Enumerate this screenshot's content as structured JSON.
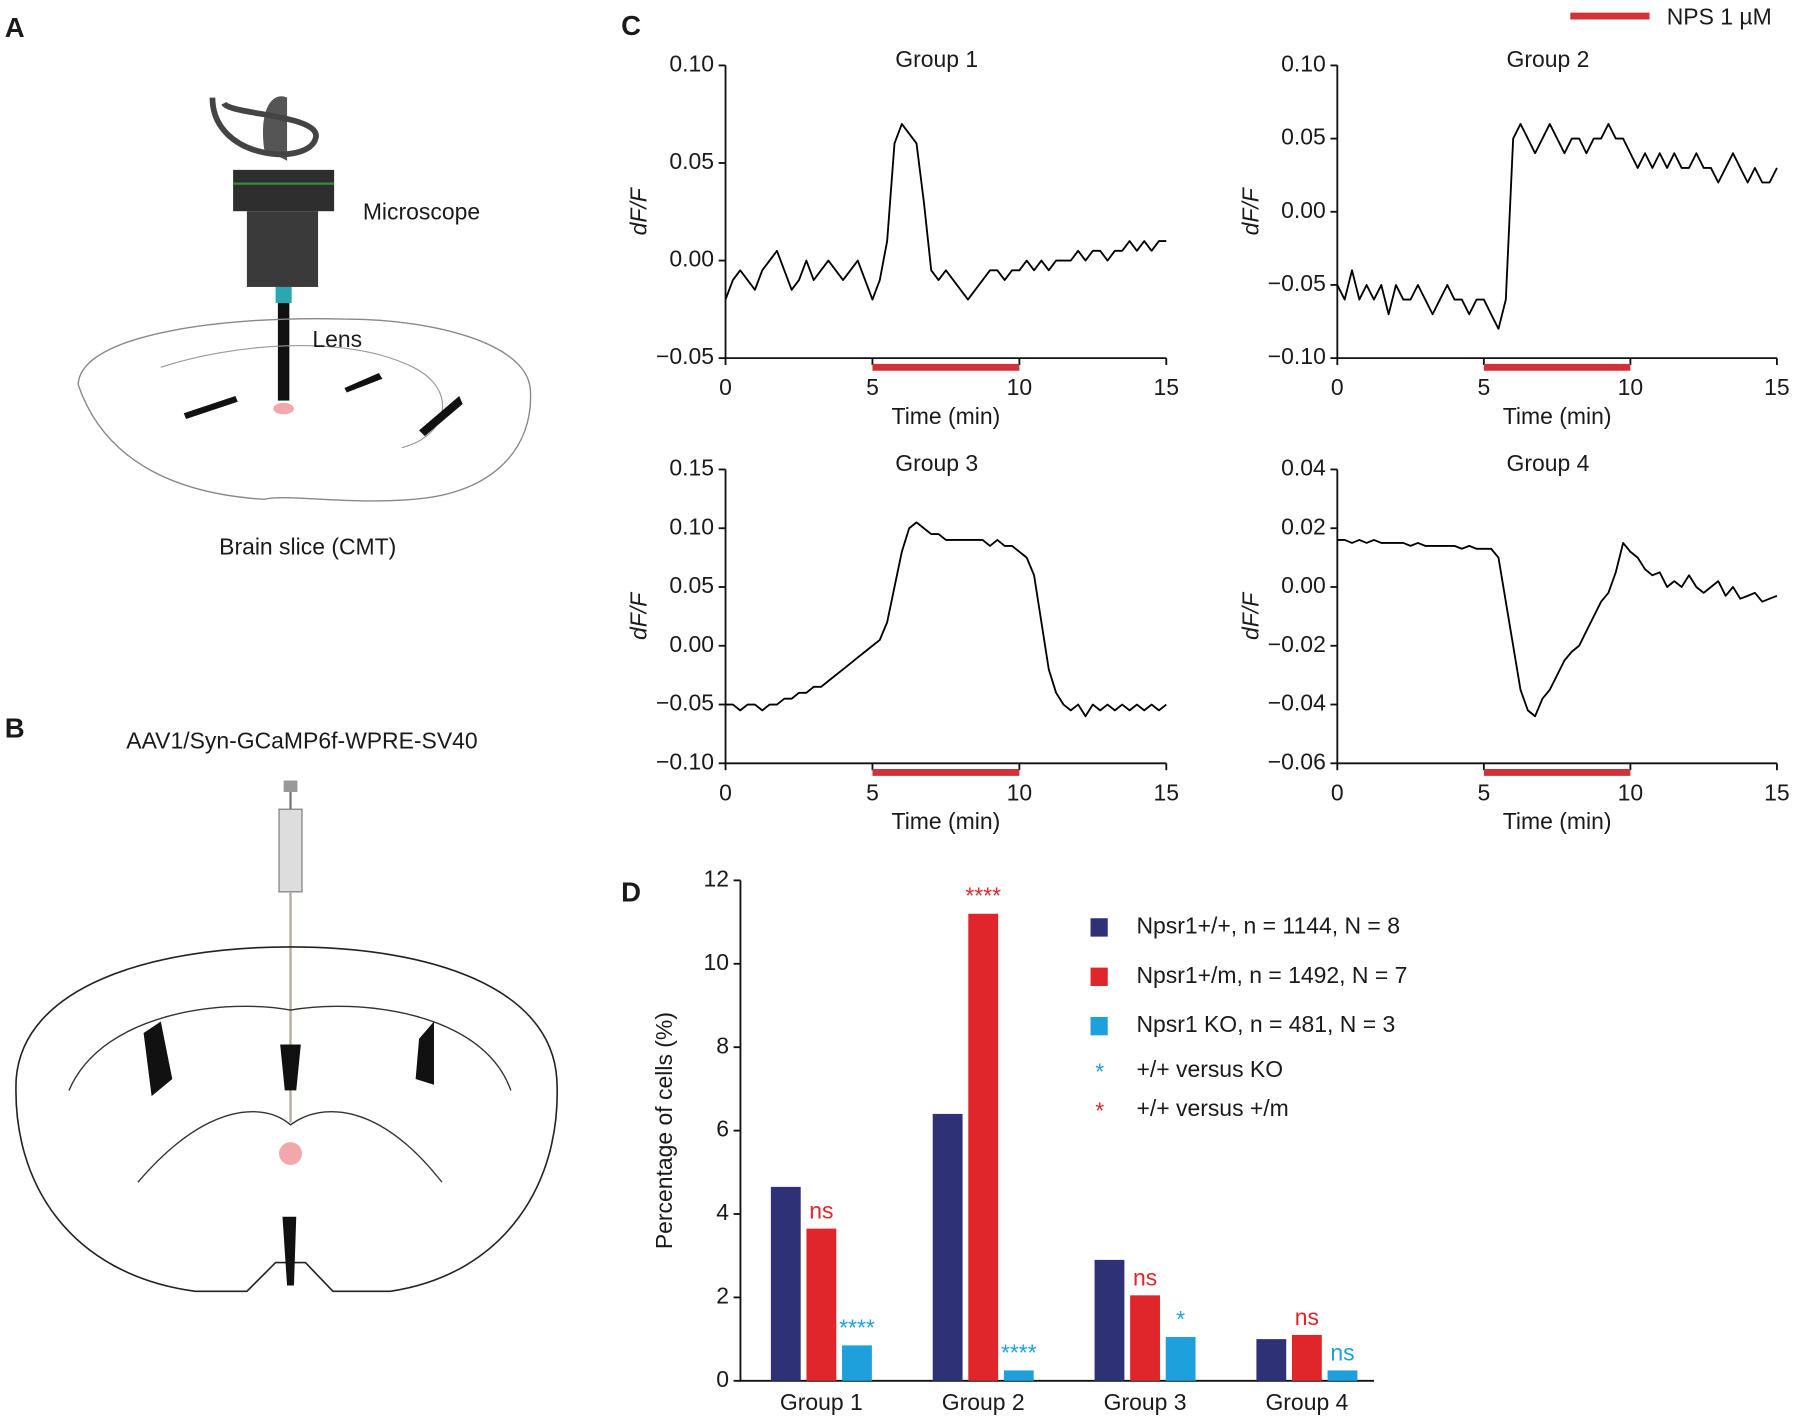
{
  "figure": {
    "panel_labels": [
      "A",
      "B",
      "C",
      "D"
    ],
    "microscope": "Microscope",
    "lens": "Lens",
    "slice": "Brain slice (CMT)",
    "virus": "AAV1/Syn-GCaMP6f-WPRE-SV40",
    "stimulus": {
      "label": "NPS 1 µM",
      "color": "#d3313a"
    }
  },
  "chart_data": [
    {
      "type": "line",
      "title": "Group 1",
      "xlabel": "Time (min)",
      "ylabel": "dF/F",
      "color": "#000000",
      "stimulus": [
        5,
        10
      ],
      "xlim": [
        0,
        15
      ],
      "xticks": [
        0,
        5,
        10,
        15
      ],
      "ylim": [
        -0.05,
        0.1
      ],
      "yticks": [
        {
          "value": -0.05,
          "label": "−0.05"
        },
        {
          "value": 0,
          "label": "0.00"
        },
        {
          "value": 0.05,
          "label": "0.05"
        },
        {
          "value": 0.1,
          "label": "0.10"
        }
      ],
      "x": [
        0,
        0.25,
        0.5,
        0.75,
        1,
        1.25,
        1.5,
        1.75,
        2,
        2.25,
        2.5,
        2.75,
        3,
        3.25,
        3.5,
        3.75,
        4,
        4.25,
        4.5,
        4.75,
        5,
        5.25,
        5.5,
        5.75,
        6,
        6.25,
        6.5,
        6.75,
        7,
        7.25,
        7.5,
        7.75,
        8,
        8.25,
        8.5,
        8.75,
        9,
        9.25,
        9.5,
        9.75,
        10,
        10.25,
        10.5,
        10.75,
        11,
        11.25,
        11.5,
        11.75,
        12,
        12.25,
        12.5,
        12.75,
        13,
        13.25,
        13.5,
        13.75,
        14,
        14.25,
        14.5,
        14.75,
        15
      ],
      "values": [
        -0.02,
        -0.01,
        -0.005,
        -0.01,
        -0.015,
        -0.005,
        0,
        0.005,
        -0.005,
        -0.015,
        -0.01,
        0,
        -0.01,
        -0.005,
        0,
        -0.005,
        -0.01,
        -0.005,
        0,
        -0.01,
        -0.02,
        -0.01,
        0.01,
        0.06,
        0.07,
        0.065,
        0.06,
        0.03,
        -0.005,
        -0.01,
        -0.005,
        -0.01,
        -0.015,
        -0.02,
        -0.015,
        -0.01,
        -0.005,
        -0.005,
        -0.01,
        -0.005,
        -0.005,
        0,
        -0.005,
        0,
        -0.005,
        0,
        0,
        0,
        0.005,
        0,
        0.005,
        0.005,
        0,
        0.005,
        0.005,
        0.01,
        0.005,
        0.01,
        0.005,
        0.01,
        0.01
      ]
    },
    {
      "type": "line",
      "title": "Group 2",
      "xlabel": "Time (min)",
      "ylabel": "dF/F",
      "color": "#000000",
      "stimulus": [
        5,
        10
      ],
      "xlim": [
        0,
        15
      ],
      "xticks": [
        0,
        5,
        10,
        15
      ],
      "ylim": [
        -0.1,
        0.1
      ],
      "yticks": [
        {
          "value": -0.1,
          "label": "−0.10"
        },
        {
          "value": -0.05,
          "label": "−0.05"
        },
        {
          "value": 0,
          "label": "0.00"
        },
        {
          "value": 0.05,
          "label": "0.05"
        },
        {
          "value": 0.1,
          "label": "0.10"
        }
      ],
      "x": [
        0,
        0.25,
        0.5,
        0.75,
        1,
        1.25,
        1.5,
        1.75,
        2,
        2.25,
        2.5,
        2.75,
        3,
        3.25,
        3.5,
        3.75,
        4,
        4.25,
        4.5,
        4.75,
        5,
        5.25,
        5.5,
        5.75,
        6,
        6.25,
        6.5,
        6.75,
        7,
        7.25,
        7.5,
        7.75,
        8,
        8.25,
        8.5,
        8.75,
        9,
        9.25,
        9.5,
        9.75,
        10,
        10.25,
        10.5,
        10.75,
        11,
        11.25,
        11.5,
        11.75,
        12,
        12.25,
        12.5,
        12.75,
        13,
        13.25,
        13.5,
        13.75,
        14,
        14.25,
        14.5,
        14.75,
        15
      ],
      "values": [
        -0.05,
        -0.06,
        -0.04,
        -0.06,
        -0.05,
        -0.06,
        -0.05,
        -0.07,
        -0.05,
        -0.06,
        -0.06,
        -0.05,
        -0.06,
        -0.07,
        -0.06,
        -0.05,
        -0.06,
        -0.06,
        -0.07,
        -0.06,
        -0.06,
        -0.07,
        -0.08,
        -0.06,
        0.05,
        0.06,
        0.05,
        0.04,
        0.05,
        0.06,
        0.05,
        0.04,
        0.05,
        0.05,
        0.04,
        0.05,
        0.05,
        0.06,
        0.05,
        0.05,
        0.04,
        0.03,
        0.04,
        0.03,
        0.04,
        0.03,
        0.04,
        0.03,
        0.03,
        0.04,
        0.03,
        0.03,
        0.02,
        0.03,
        0.04,
        0.03,
        0.02,
        0.03,
        0.02,
        0.02,
        0.03
      ]
    },
    {
      "type": "line",
      "title": "Group 3",
      "xlabel": "Time (min)",
      "ylabel": "dF/F",
      "color": "#000000",
      "stimulus": [
        5,
        10
      ],
      "xlim": [
        0,
        15
      ],
      "xticks": [
        0,
        5,
        10,
        15
      ],
      "ylim": [
        -0.1,
        0.15
      ],
      "yticks": [
        {
          "value": -0.1,
          "label": "−0.10"
        },
        {
          "value": -0.05,
          "label": "−0.05"
        },
        {
          "value": 0,
          "label": "0.00"
        },
        {
          "value": 0.05,
          "label": "0.05"
        },
        {
          "value": 0.1,
          "label": "0.10"
        },
        {
          "value": 0.15,
          "label": "0.15"
        }
      ],
      "x": [
        0,
        0.25,
        0.5,
        0.75,
        1,
        1.25,
        1.5,
        1.75,
        2,
        2.25,
        2.5,
        2.75,
        3,
        3.25,
        3.5,
        3.75,
        4,
        4.25,
        4.5,
        4.75,
        5,
        5.25,
        5.5,
        5.75,
        6,
        6.25,
        6.5,
        6.75,
        7,
        7.25,
        7.5,
        7.75,
        8,
        8.25,
        8.5,
        8.75,
        9,
        9.25,
        9.5,
        9.75,
        10,
        10.25,
        10.5,
        10.75,
        11,
        11.25,
        11.5,
        11.75,
        12,
        12.25,
        12.5,
        12.75,
        13,
        13.25,
        13.5,
        13.75,
        14,
        14.25,
        14.5,
        14.75,
        15
      ],
      "values": [
        -0.05,
        -0.05,
        -0.055,
        -0.05,
        -0.05,
        -0.055,
        -0.05,
        -0.05,
        -0.045,
        -0.045,
        -0.04,
        -0.04,
        -0.035,
        -0.035,
        -0.03,
        -0.025,
        -0.02,
        -0.015,
        -0.01,
        -0.005,
        0,
        0.005,
        0.02,
        0.05,
        0.08,
        0.1,
        0.105,
        0.1,
        0.095,
        0.095,
        0.09,
        0.09,
        0.09,
        0.09,
        0.09,
        0.09,
        0.085,
        0.09,
        0.085,
        0.085,
        0.08,
        0.075,
        0.06,
        0.02,
        -0.02,
        -0.04,
        -0.05,
        -0.055,
        -0.05,
        -0.06,
        -0.05,
        -0.055,
        -0.05,
        -0.055,
        -0.05,
        -0.055,
        -0.05,
        -0.055,
        -0.05,
        -0.055,
        -0.05
      ]
    },
    {
      "type": "line",
      "title": "Group 4",
      "xlabel": "Time (min)",
      "ylabel": "dF/F",
      "color": "#000000",
      "stimulus": [
        5,
        10
      ],
      "xlim": [
        0,
        15
      ],
      "xticks": [
        0,
        5,
        10,
        15
      ],
      "ylim": [
        -0.06,
        0.04
      ],
      "yticks": [
        {
          "value": -0.06,
          "label": "−0.06"
        },
        {
          "value": -0.04,
          "label": "−0.04"
        },
        {
          "value": -0.02,
          "label": "−0.02"
        },
        {
          "value": 0,
          "label": "0.00"
        },
        {
          "value": 0.02,
          "label": "0.02"
        },
        {
          "value": 0.04,
          "label": "0.04"
        }
      ],
      "x": [
        0,
        0.25,
        0.5,
        0.75,
        1,
        1.25,
        1.5,
        1.75,
        2,
        2.25,
        2.5,
        2.75,
        3,
        3.25,
        3.5,
        3.75,
        4,
        4.25,
        4.5,
        4.75,
        5,
        5.25,
        5.5,
        5.75,
        6,
        6.25,
        6.5,
        6.75,
        7,
        7.25,
        7.5,
        7.75,
        8,
        8.25,
        8.5,
        8.75,
        9,
        9.25,
        9.5,
        9.75,
        10,
        10.25,
        10.5,
        10.75,
        11,
        11.25,
        11.5,
        11.75,
        12,
        12.25,
        12.5,
        12.75,
        13,
        13.25,
        13.5,
        13.75,
        14,
        14.25,
        14.5,
        14.75,
        15
      ],
      "values": [
        0.016,
        0.016,
        0.015,
        0.016,
        0.015,
        0.016,
        0.015,
        0.015,
        0.015,
        0.015,
        0.014,
        0.015,
        0.014,
        0.014,
        0.014,
        0.014,
        0.014,
        0.013,
        0.014,
        0.013,
        0.013,
        0.013,
        0.01,
        -0.005,
        -0.02,
        -0.035,
        -0.042,
        -0.044,
        -0.038,
        -0.035,
        -0.03,
        -0.025,
        -0.022,
        -0.02,
        -0.015,
        -0.01,
        -0.005,
        -0.002,
        0.005,
        0.015,
        0.012,
        0.01,
        0.006,
        0.004,
        0.005,
        0,
        0.002,
        0,
        0.004,
        0,
        -0.002,
        0,
        0.002,
        -0.003,
        0,
        -0.004,
        -0.003,
        -0.002,
        -0.005,
        -0.004,
        -0.003
      ]
    },
    {
      "type": "bar",
      "ylabel": "Percentage of cells (%)",
      "categories": [
        "Group 1",
        "Group 2",
        "Group 3",
        "Group 4"
      ],
      "ylim": [
        0,
        12
      ],
      "yticks": [
        0,
        2,
        4,
        6,
        8,
        10,
        12
      ],
      "series": [
        {
          "name": "Npsr1+/+, n = 1144, N = 8",
          "color": "#2e3176",
          "values": [
            4.65,
            6.4,
            2.9,
            1.0
          ]
        },
        {
          "name": "Npsr1+/m, n = 1492, N = 7",
          "color": "#e0262b",
          "values": [
            3.65,
            11.2,
            2.05,
            1.1
          ],
          "annotations": [
            "ns",
            "****",
            "ns",
            "ns"
          ]
        },
        {
          "name": "Npsr1 KO, n = 481, N = 3",
          "color": "#1ea0dc",
          "values": [
            0.85,
            0.25,
            1.05,
            0.25
          ],
          "annotations": [
            "****",
            "****",
            "*",
            "ns"
          ]
        }
      ],
      "notes": [
        {
          "symbol": "*",
          "color": "#1ea0dc",
          "label": "+/+ versus KO"
        },
        {
          "symbol": "*",
          "color": "#e0262b",
          "label": "+/+ versus +/m"
        }
      ]
    }
  ]
}
